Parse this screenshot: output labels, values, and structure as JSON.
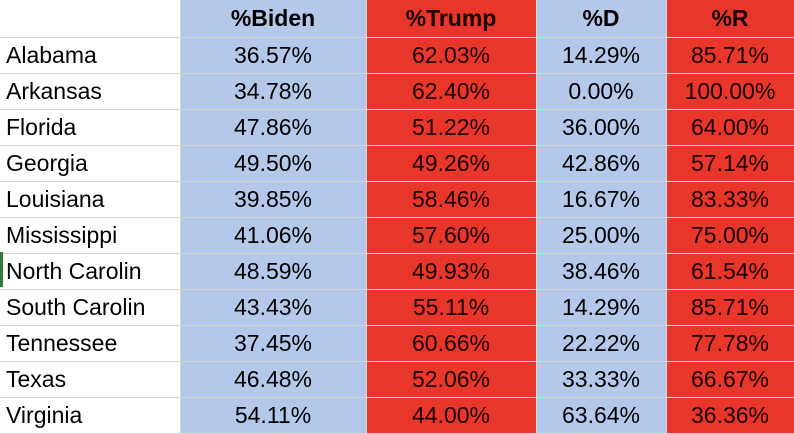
{
  "columns": [
    "",
    "%Biden",
    "%Trump",
    "%D",
    "%R"
  ],
  "rows": [
    [
      "Alabama",
      "36.57%",
      "62.03%",
      "14.29%",
      "85.71%"
    ],
    [
      "Arkansas",
      "34.78%",
      "62.40%",
      "0.00%",
      "100.00%"
    ],
    [
      "Florida",
      "47.86%",
      "51.22%",
      "36.00%",
      "64.00%"
    ],
    [
      "Georgia",
      "49.50%",
      "49.26%",
      "42.86%",
      "57.14%"
    ],
    [
      "Louisiana",
      "39.85%",
      "58.46%",
      "16.67%",
      "83.33%"
    ],
    [
      "Mississippi",
      "41.06%",
      "57.60%",
      "25.00%",
      "75.00%"
    ],
    [
      "North Carolin",
      "48.59%",
      "49.93%",
      "38.46%",
      "61.54%"
    ],
    [
      "South Carolin",
      "43.43%",
      "55.11%",
      "14.29%",
      "85.71%"
    ],
    [
      "Tennessee",
      "37.45%",
      "60.66%",
      "22.22%",
      "77.78%"
    ],
    [
      "Texas",
      "46.48%",
      "52.06%",
      "33.33%",
      "66.67%"
    ],
    [
      "Virginia",
      "54.11%",
      "44.00%",
      "63.64%",
      "36.36%"
    ]
  ],
  "colors": {
    "dem_fill": "#b4c8ea",
    "rep_fill": "#e8372a"
  }
}
